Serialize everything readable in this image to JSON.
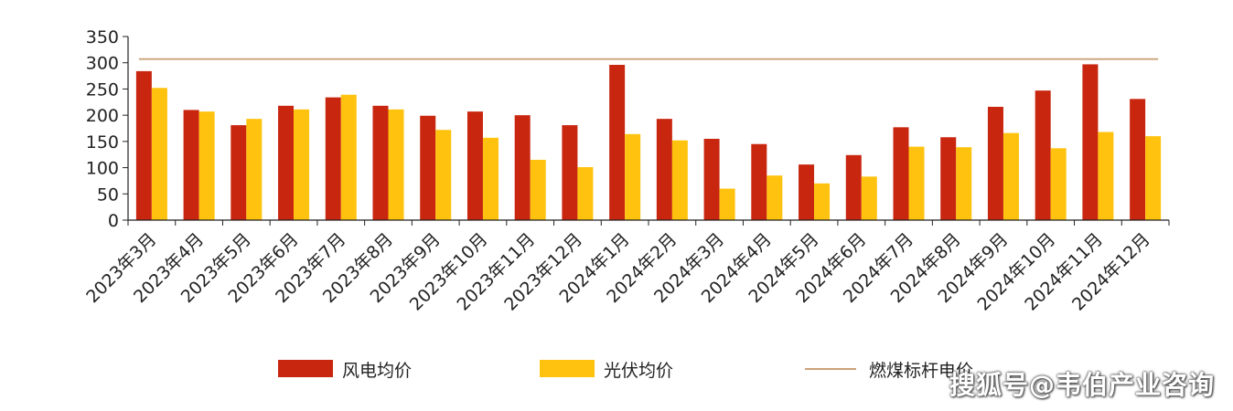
{
  "chart_data": {
    "type": "bar",
    "title": "",
    "xlabel": "",
    "ylabel": "",
    "ylim": [
      0,
      350
    ],
    "yticks": [
      0,
      50,
      100,
      150,
      200,
      250,
      300,
      350
    ],
    "categories": [
      "2023年3月",
      "2023年4月",
      "2023年5月",
      "2023年6月",
      "2023年7月",
      "2023年8月",
      "2023年9月",
      "2023年10月",
      "2023年11月",
      "2023年12月",
      "2024年1月",
      "2024年2月",
      "2024年3月",
      "2024年4月",
      "2024年5月",
      "2024年6月",
      "2024年7月",
      "2024年8月",
      "2024年9月",
      "2024年10月",
      "2024年11月",
      "2024年12月"
    ],
    "series": [
      {
        "name": "风电均价",
        "type": "bar",
        "color": "#C8260F",
        "values": [
          284,
          210,
          181,
          218,
          234,
          218,
          199,
          207,
          200,
          181,
          296,
          193,
          155,
          145,
          106,
          124,
          177,
          158,
          216,
          247,
          297,
          231
        ]
      },
      {
        "name": "光伏均价",
        "type": "bar",
        "color": "#FFC20E",
        "values": [
          252,
          207,
          193,
          211,
          239,
          211,
          172,
          157,
          115,
          101,
          164,
          152,
          60,
          85,
          70,
          83,
          140,
          139,
          166,
          137,
          168,
          160
        ]
      },
      {
        "name": "燃煤标杆电价",
        "type": "line",
        "color": "#C9A27A",
        "values": [
          307,
          307,
          307,
          307,
          307,
          307,
          307,
          307,
          307,
          307,
          307,
          307,
          307,
          307,
          307,
          307,
          307,
          307,
          307,
          307,
          307,
          307
        ]
      }
    ],
    "grid": false,
    "legend_position": "bottom"
  },
  "watermark": "搜狐号@韦伯产业咨询"
}
